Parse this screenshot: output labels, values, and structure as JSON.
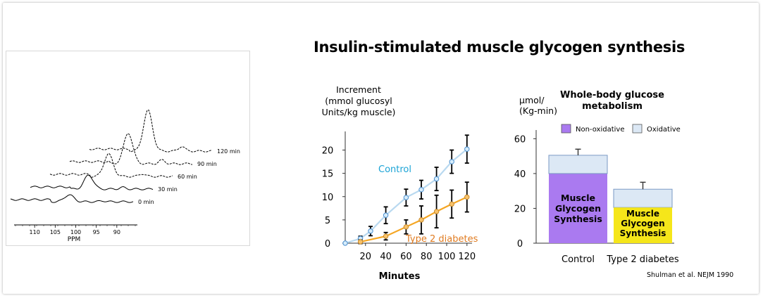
{
  "slide": {
    "title": "Insulin-stimulated muscle glycogen synthesis",
    "citation": "Shulman et al. NEJM 1990"
  },
  "chart_data": [
    {
      "type": "line",
      "name": "nmr-spectra",
      "xlabel": "PPM",
      "x_ticks": [
        110,
        105,
        100,
        95,
        90
      ],
      "xlim": [
        115,
        85
      ],
      "series": [
        {
          "name": "0 min",
          "peak_ppm": 100,
          "peak_height": 1.0
        },
        {
          "name": "30 min",
          "peak_ppm": 100,
          "peak_height": 2.0
        },
        {
          "name": "60 min",
          "peak_ppm": 100,
          "peak_height": 3.2
        },
        {
          "name": "90 min",
          "peak_ppm": 100,
          "peak_height": 4.4
        },
        {
          "name": "120 min",
          "peak_ppm": 100,
          "peak_height": 5.8
        }
      ]
    },
    {
      "type": "line",
      "name": "glycogen-increment",
      "title": "",
      "ylabel_lines": [
        "Increment",
        "(mmol glucosyl",
        "Units/kg muscle)"
      ],
      "xlabel": "Minutes",
      "x_ticks": [
        20,
        40,
        60,
        80,
        100,
        120
      ],
      "y_ticks": [
        0,
        5,
        10,
        15,
        20
      ],
      "xlim": [
        0,
        125
      ],
      "ylim": [
        0,
        24
      ],
      "series": [
        {
          "name": "Control",
          "color": "#1aa3d6",
          "line_color": "#b9d9f0",
          "x": [
            0,
            15,
            25,
            40,
            60,
            75,
            90,
            105,
            120
          ],
          "y": [
            0,
            1.0,
            2.6,
            6.0,
            9.8,
            11.5,
            13.8,
            17.5,
            20.2
          ],
          "err": [
            0,
            0.5,
            1.0,
            1.8,
            1.8,
            2.0,
            2.5,
            2.5,
            3.0
          ]
        },
        {
          "name": "Type 2 diabetes",
          "color": "#e07b20",
          "line_color": "#f5a623",
          "x": [
            15,
            40,
            60,
            75,
            90,
            105,
            120
          ],
          "y": [
            0.3,
            1.5,
            3.5,
            5.0,
            6.8,
            8.4,
            9.9
          ],
          "err": [
            0.4,
            0.8,
            1.5,
            3.0,
            3.5,
            3.0,
            3.2
          ]
        }
      ]
    },
    {
      "type": "bar",
      "name": "whole-body-glucose",
      "title": "Whole-body glucose metabolism",
      "title_lines": [
        "Whole-body glucose",
        "metabolism"
      ],
      "ylabel_lines": [
        "µmol/",
        "(Kg-min)"
      ],
      "y_ticks": [
        0,
        20,
        40,
        60
      ],
      "ylim": [
        0,
        65
      ],
      "categories": [
        "Control",
        "Type 2 diabetes"
      ],
      "series": [
        {
          "name": "Non-oxidative",
          "color": "#aa7af0",
          "values": [
            40,
            20.5
          ]
        },
        {
          "name": "Oxidative",
          "color": "#dce8f5",
          "values": [
            10.5,
            10.5
          ]
        }
      ],
      "error_top": [
        3.5,
        4.0
      ],
      "bar_labels": [
        {
          "category": "Control",
          "color": "#aa7af0",
          "lines": [
            "Muscle",
            "Glycogen",
            "Synthesis"
          ]
        },
        {
          "category": "Type 2 diabetes",
          "color": "#f5e61a",
          "lines": [
            "Muscle",
            "Glycogen",
            "Synthesis"
          ]
        }
      ]
    }
  ]
}
